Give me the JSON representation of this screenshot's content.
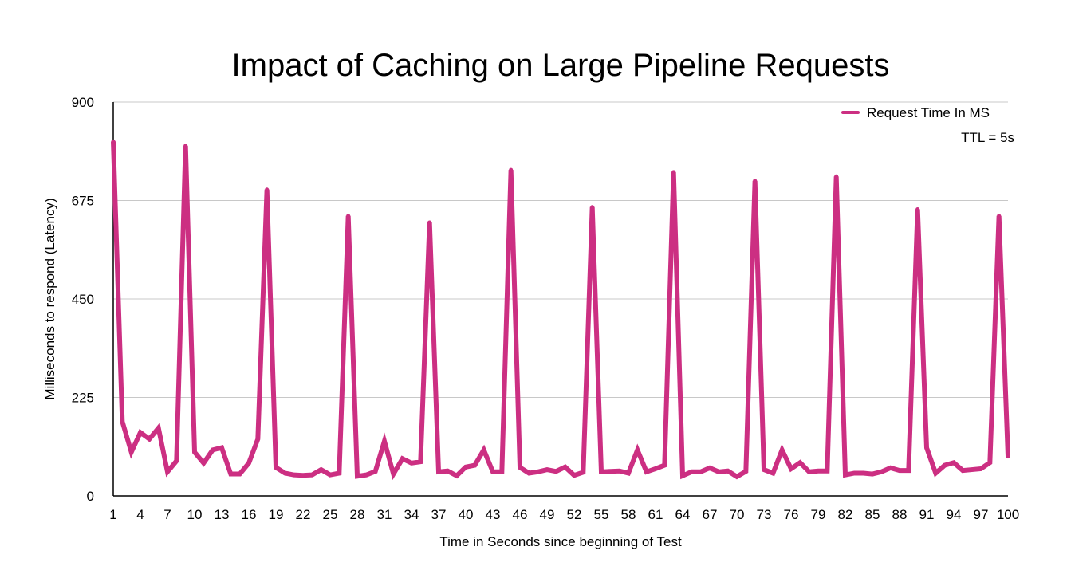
{
  "chart_data": {
    "type": "line",
    "title": "Impact of Caching on Large Pipeline Requests",
    "xlabel": "Time in Seconds since beginning of Test",
    "ylabel": "Milliseconds to respond (Latency)",
    "ylim": [
      0,
      900
    ],
    "yticks": [
      0,
      225,
      450,
      675,
      900
    ],
    "xticks": [
      1,
      4,
      7,
      10,
      13,
      16,
      19,
      22,
      25,
      28,
      31,
      34,
      37,
      40,
      43,
      46,
      49,
      52,
      55,
      58,
      61,
      64,
      67,
      70,
      73,
      76,
      79,
      82,
      85,
      88,
      91,
      94,
      97,
      100
    ],
    "grid": true,
    "legend_position": "top-right",
    "annotation": "TTL = 5s",
    "colors": {
      "line": "#cc2f82",
      "grid": "#c8c8c8",
      "axis": "#000000"
    },
    "x": [
      1,
      2,
      3,
      4,
      5,
      6,
      7,
      8,
      9,
      10,
      11,
      12,
      13,
      14,
      15,
      16,
      17,
      18,
      19,
      20,
      21,
      22,
      23,
      24,
      25,
      26,
      27,
      28,
      29,
      30,
      31,
      32,
      33,
      34,
      35,
      36,
      37,
      38,
      39,
      40,
      41,
      42,
      43,
      44,
      45,
      46,
      47,
      48,
      49,
      50,
      51,
      52,
      53,
      54,
      55,
      56,
      57,
      58,
      59,
      60,
      61,
      62,
      63,
      64,
      65,
      66,
      67,
      68,
      69,
      70,
      71,
      72,
      73,
      74,
      75,
      76,
      77,
      78,
      79,
      80,
      81,
      82,
      83,
      84,
      85,
      86,
      87,
      88,
      89,
      90,
      91,
      92,
      93,
      94,
      95,
      96,
      97,
      98,
      99,
      100
    ],
    "series": [
      {
        "name": "Request Time In MS",
        "values": [
          810,
          170,
          100,
          145,
          130,
          155,
          55,
          80,
          800,
          100,
          75,
          105,
          110,
          50,
          50,
          75,
          130,
          700,
          65,
          52,
          48,
          47,
          48,
          60,
          48,
          52,
          640,
          45,
          48,
          56,
          125,
          50,
          85,
          75,
          78,
          625,
          55,
          57,
          46,
          66,
          70,
          105,
          55,
          55,
          745,
          65,
          52,
          55,
          60,
          56,
          66,
          47,
          54,
          660,
          55,
          56,
          57,
          52,
          105,
          55,
          62,
          70,
          740,
          46,
          55,
          55,
          64,
          55,
          57,
          44,
          56,
          720,
          60,
          52,
          105,
          62,
          76,
          55,
          57,
          57,
          730,
          48,
          52,
          52,
          50,
          55,
          64,
          58,
          58,
          655,
          110,
          52,
          70,
          76,
          58,
          60,
          62,
          76,
          640,
          90
        ]
      }
    ]
  }
}
